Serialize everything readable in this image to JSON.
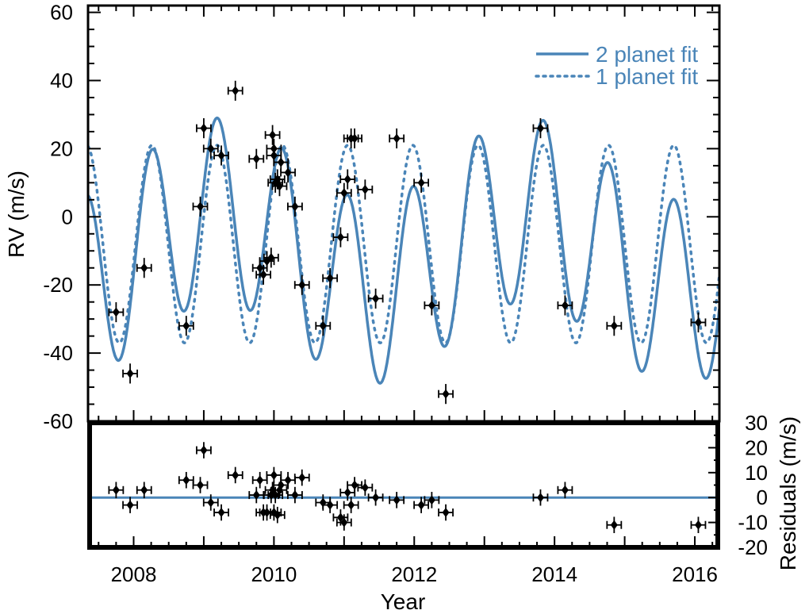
{
  "chart_data": [
    {
      "panel": "top",
      "type": "scatter",
      "xlabel": "",
      "ylabel": "RV (m/s)",
      "xlim": [
        2007.35,
        2016.35
      ],
      "ylim": [
        -60,
        62
      ],
      "yticks": [
        60,
        40,
        20,
        0,
        -20,
        -40,
        -60
      ],
      "ytick_labels": [
        "60",
        "40",
        "20",
        "0",
        "-20",
        "-40",
        "-60"
      ],
      "legend": {
        "placement": "top-right",
        "entries": [
          {
            "label": "2 planet fit",
            "style": "solid"
          },
          {
            "label": "1 planet fit",
            "style": "dotted"
          }
        ]
      },
      "series": [
        {
          "style": "solid",
          "color": "#4a85b8",
          "model": {
            "offset": -10,
            "components": [
              {
                "amplitude": 27,
                "period_yr": 0.93,
                "phase_epoch": 2007.33
              },
              {
                "amplitude": 12,
                "period_yr": 4.4,
                "phase_epoch": 2009.2
              }
            ]
          }
        },
        {
          "style": "dotted",
          "color": "#4a85b8",
          "model": {
            "offset": -8,
            "components": [
              {
                "amplitude": 29,
                "period_yr": 0.93,
                "phase_epoch": 2007.33
              }
            ]
          }
        },
        {
          "style": "points",
          "color": "#000000",
          "x": [
            2007.75,
            2007.95,
            2008.15,
            2008.75,
            2008.95,
            2009.0,
            2009.1,
            2009.25,
            2009.45,
            2009.75,
            2009.8,
            2009.85,
            2009.9,
            2009.96,
            2009.98,
            2010.0,
            2010.0,
            2010.02,
            2010.05,
            2010.08,
            2010.1,
            2010.2,
            2010.3,
            2010.4,
            2010.7,
            2010.8,
            2010.95,
            2011.0,
            2011.05,
            2011.1,
            2011.15,
            2011.3,
            2011.45,
            2011.75,
            2012.1,
            2012.25,
            2012.45,
            2013.8,
            2014.15,
            2014.85,
            2016.05
          ],
          "y": [
            -28,
            -46,
            -15,
            -32,
            3,
            26,
            20,
            18,
            37,
            17,
            -15,
            -17,
            -13,
            -12,
            24,
            20,
            18,
            10,
            11,
            9,
            16,
            13,
            3,
            -20,
            -32,
            -18,
            -6,
            7,
            11,
            23,
            23,
            8,
            -24,
            23,
            10,
            -26,
            -52,
            26,
            -26,
            -32,
            -31
          ],
          "yerr": 2
        }
      ]
    },
    {
      "panel": "bottom",
      "type": "scatter",
      "xlabel": "Year",
      "ylabel": "Residuals (m/s)",
      "xlim": [
        2007.35,
        2016.35
      ],
      "ylim": [
        -20,
        30
      ],
      "xticks": [
        2008,
        2010,
        2012,
        2014,
        2016
      ],
      "xtick_labels": [
        "2008",
        "2010",
        "2012",
        "2014",
        "2016"
      ],
      "yticks": [
        30,
        20,
        10,
        0,
        -10,
        -20
      ],
      "ytick_labels": [
        "30",
        "20",
        "10",
        "0",
        "-10",
        "-20"
      ],
      "series": [
        {
          "style": "zero-line",
          "color": "#4a85b8",
          "y": 0
        },
        {
          "style": "points",
          "color": "#000000",
          "x": [
            2007.75,
            2007.95,
            2008.15,
            2008.75,
            2008.95,
            2009.0,
            2009.1,
            2009.25,
            2009.45,
            2009.75,
            2009.8,
            2009.85,
            2009.9,
            2009.96,
            2009.98,
            2010.0,
            2010.0,
            2010.02,
            2010.05,
            2010.08,
            2010.1,
            2010.2,
            2010.3,
            2010.4,
            2010.7,
            2010.8,
            2010.95,
            2011.0,
            2011.05,
            2011.1,
            2011.15,
            2011.3,
            2011.45,
            2011.75,
            2012.1,
            2012.25,
            2012.45,
            2013.8,
            2014.15,
            2014.85,
            2016.05
          ],
          "y": [
            3,
            -3,
            3,
            7,
            5,
            19,
            -2,
            -6,
            9,
            1,
            7,
            -6,
            -6,
            1,
            3,
            9,
            -6,
            1,
            -7,
            3,
            5,
            7,
            1,
            8,
            -2,
            -3,
            -8,
            -10,
            2,
            -3,
            5,
            4,
            0,
            -1,
            -3,
            -1,
            -6,
            0,
            3,
            -11,
            -11
          ],
          "yerr": 2
        }
      ]
    }
  ]
}
